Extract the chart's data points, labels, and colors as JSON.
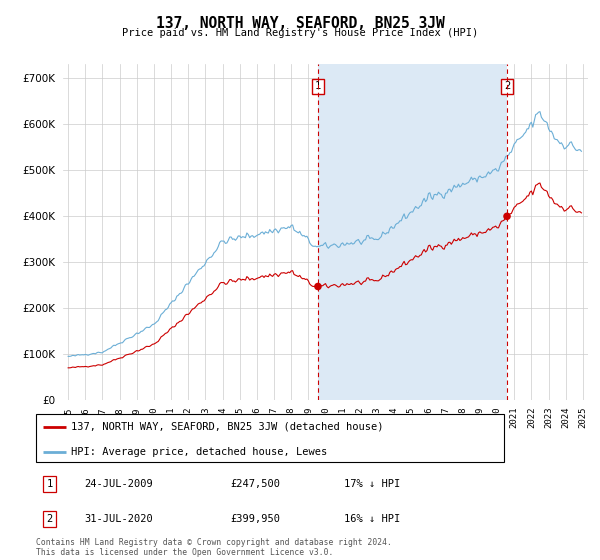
{
  "title": "137, NORTH WAY, SEAFORD, BN25 3JW",
  "subtitle": "Price paid vs. HM Land Registry's House Price Index (HPI)",
  "legend_line1": "137, NORTH WAY, SEAFORD, BN25 3JW (detached house)",
  "legend_line2": "HPI: Average price, detached house, Lewes",
  "transaction1_date": "24-JUL-2009",
  "transaction1_price": "£247,500",
  "transaction1_hpi": "17% ↓ HPI",
  "transaction2_date": "31-JUL-2020",
  "transaction2_price": "£399,950",
  "transaction2_hpi": "16% ↓ HPI",
  "footer": "Contains HM Land Registry data © Crown copyright and database right 2024.\nThis data is licensed under the Open Government Licence v3.0.",
  "hpi_color": "#6baed6",
  "property_color": "#cc0000",
  "vline_color": "#cc0000",
  "shade_color": "#dce9f5",
  "background_color": "#ffffff",
  "grid_color": "#cccccc",
  "transaction1_x": 2009.56,
  "transaction2_x": 2020.58,
  "transaction1_y": 247500,
  "transaction2_y": 399950,
  "ylim": [
    0,
    730000
  ],
  "xlim_start": 1994.7,
  "xlim_end": 2025.3
}
